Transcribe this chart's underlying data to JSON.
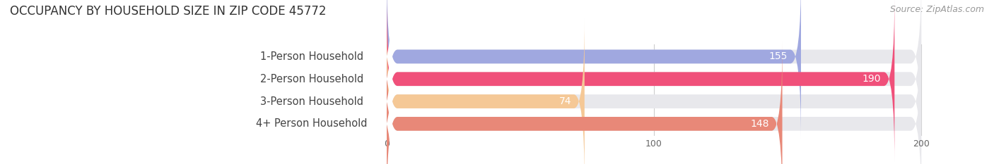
{
  "title": "OCCUPANCY BY HOUSEHOLD SIZE IN ZIP CODE 45772",
  "source": "Source: ZipAtlas.com",
  "categories": [
    "1-Person Household",
    "2-Person Household",
    "3-Person Household",
    "4+ Person Household"
  ],
  "values": [
    155,
    190,
    74,
    148
  ],
  "bar_colors": [
    "#a0a8e0",
    "#f0507a",
    "#f5c896",
    "#e88878"
  ],
  "bar_bg_color": "#e8e8ec",
  "xlim": [
    -60,
    210
  ],
  "data_xlim": [
    0,
    200
  ],
  "xticks": [
    0,
    100,
    200
  ],
  "value_label_color_inside": "#ffffff",
  "value_label_color_outside": "#999999",
  "title_fontsize": 12,
  "source_fontsize": 9,
  "label_fontsize": 10.5,
  "value_fontsize": 10,
  "background_color": "#ffffff"
}
